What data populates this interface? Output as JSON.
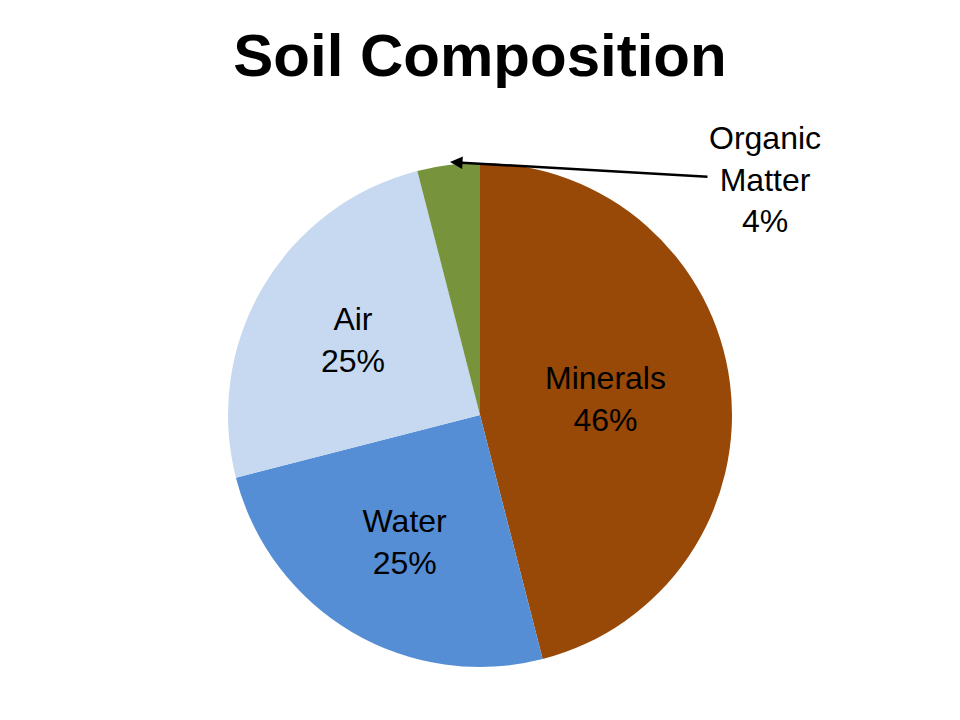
{
  "chart_data": {
    "type": "pie",
    "title": "Soil Composition",
    "categories": [
      "Minerals",
      "Water",
      "Air",
      "Organic Matter"
    ],
    "values": [
      46,
      25,
      25,
      4
    ],
    "value_labels": [
      "46%",
      "25%",
      "25%",
      "4%"
    ],
    "colors": [
      "#984807",
      "#558ED5",
      "#C6D9F1",
      "#77933C"
    ],
    "data_labels": true
  }
}
